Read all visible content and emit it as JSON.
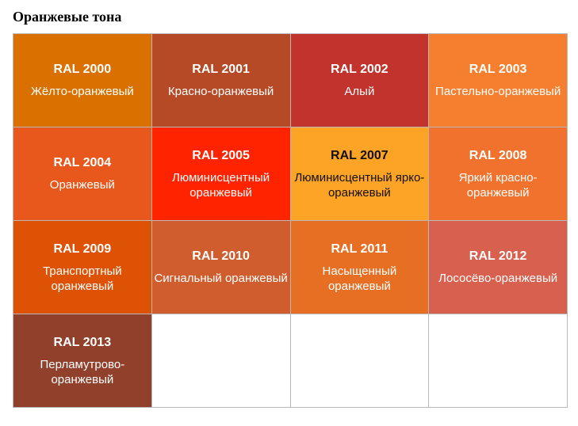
{
  "page": {
    "title": "Оранжевые тона"
  },
  "swatches": [
    {
      "code": "RAL 2000",
      "name": "Жёлто-оранжевый",
      "color": "#da7000"
    },
    {
      "code": "RAL 2001",
      "name": "Красно-оранжевый",
      "color": "#b64a26"
    },
    {
      "code": "RAL 2002",
      "name": "Алый",
      "color": "#c2332d"
    },
    {
      "code": "RAL 2003",
      "name": "Пастельно-оранжевый",
      "color": "#f57f2e"
    },
    {
      "code": "RAL 2004",
      "name": "Оранжевый",
      "color": "#e8571b"
    },
    {
      "code": "RAL 2005",
      "name": "Люминисцентный оранжевый",
      "color": "#ff2300"
    },
    {
      "code": "RAL 2007",
      "name": "Люминисцентный ярко-оранжевый",
      "color": "#fda325"
    },
    {
      "code": "RAL 2008",
      "name": "Яркий красно-оранжевый",
      "color": "#f0722c"
    },
    {
      "code": "RAL 2009",
      "name": "Транспортный оранжевый",
      "color": "#de5206"
    },
    {
      "code": "RAL 2010",
      "name": "Сигнальный оранжевый",
      "color": "#d05d2d"
    },
    {
      "code": "RAL 2011",
      "name": "Насыщенный оранжевый",
      "color": "#e66f24"
    },
    {
      "code": "RAL 2012",
      "name": "Лососёво-оранжевый",
      "color": "#d8604e"
    },
    {
      "code": "RAL 2013",
      "name": "Перламутрово-оранжевый",
      "color": "#91412b"
    }
  ]
}
